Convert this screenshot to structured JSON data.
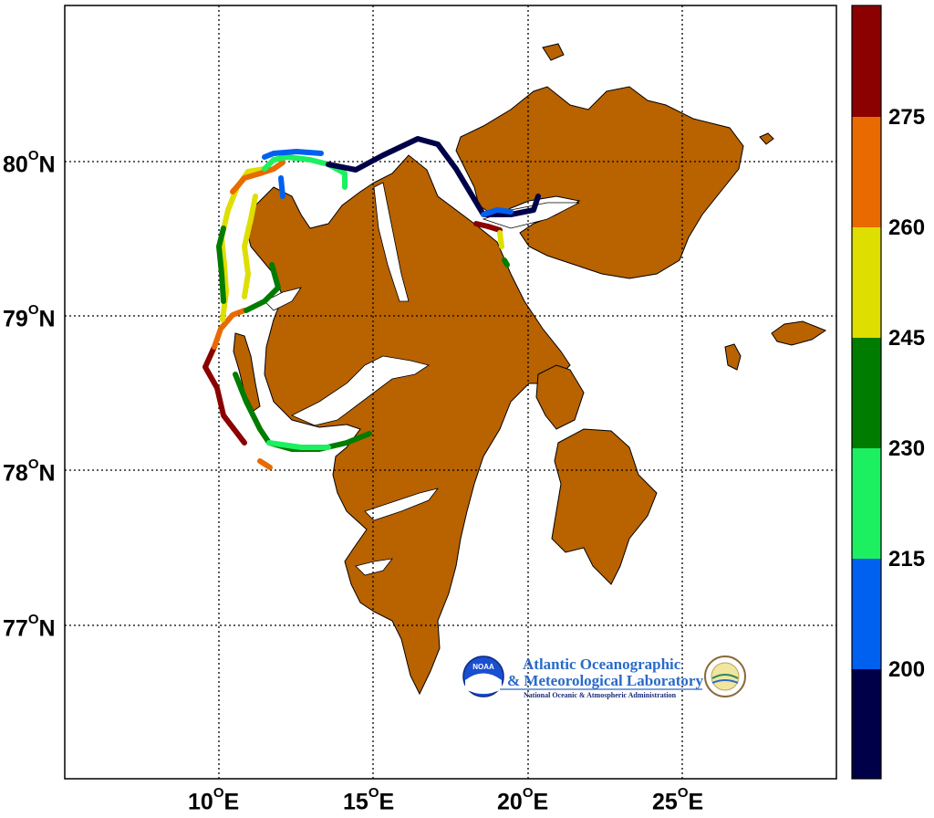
{
  "map": {
    "latitude_labels": [
      {
        "deg": "80",
        "hem": "N"
      },
      {
        "deg": "79",
        "hem": "N"
      },
      {
        "deg": "78",
        "hem": "N"
      },
      {
        "deg": "77",
        "hem": "N"
      }
    ],
    "longitude_labels": [
      {
        "deg": "10",
        "hem": "E"
      },
      {
        "deg": "15",
        "hem": "E"
      },
      {
        "deg": "20",
        "hem": "E"
      },
      {
        "deg": "25",
        "hem": "E"
      }
    ],
    "land_color": "#b86200",
    "water_color": "#ffffff",
    "grid": "dotted"
  },
  "colorbar": {
    "tick_labels": [
      "275",
      "260",
      "245",
      "230",
      "215",
      "200"
    ],
    "colors": [
      "#8b0000",
      "#e86a00",
      "#dede00",
      "#007c00",
      "#1cf060",
      "#0060f0",
      "#000048"
    ]
  },
  "logo": {
    "title_line1": "Atlantic Oceanographic",
    "title_line2": "& Meteorological Laboratory",
    "subtitle": "National Oceanic & Atmospheric Administration",
    "badge_text": "NOAA"
  }
}
